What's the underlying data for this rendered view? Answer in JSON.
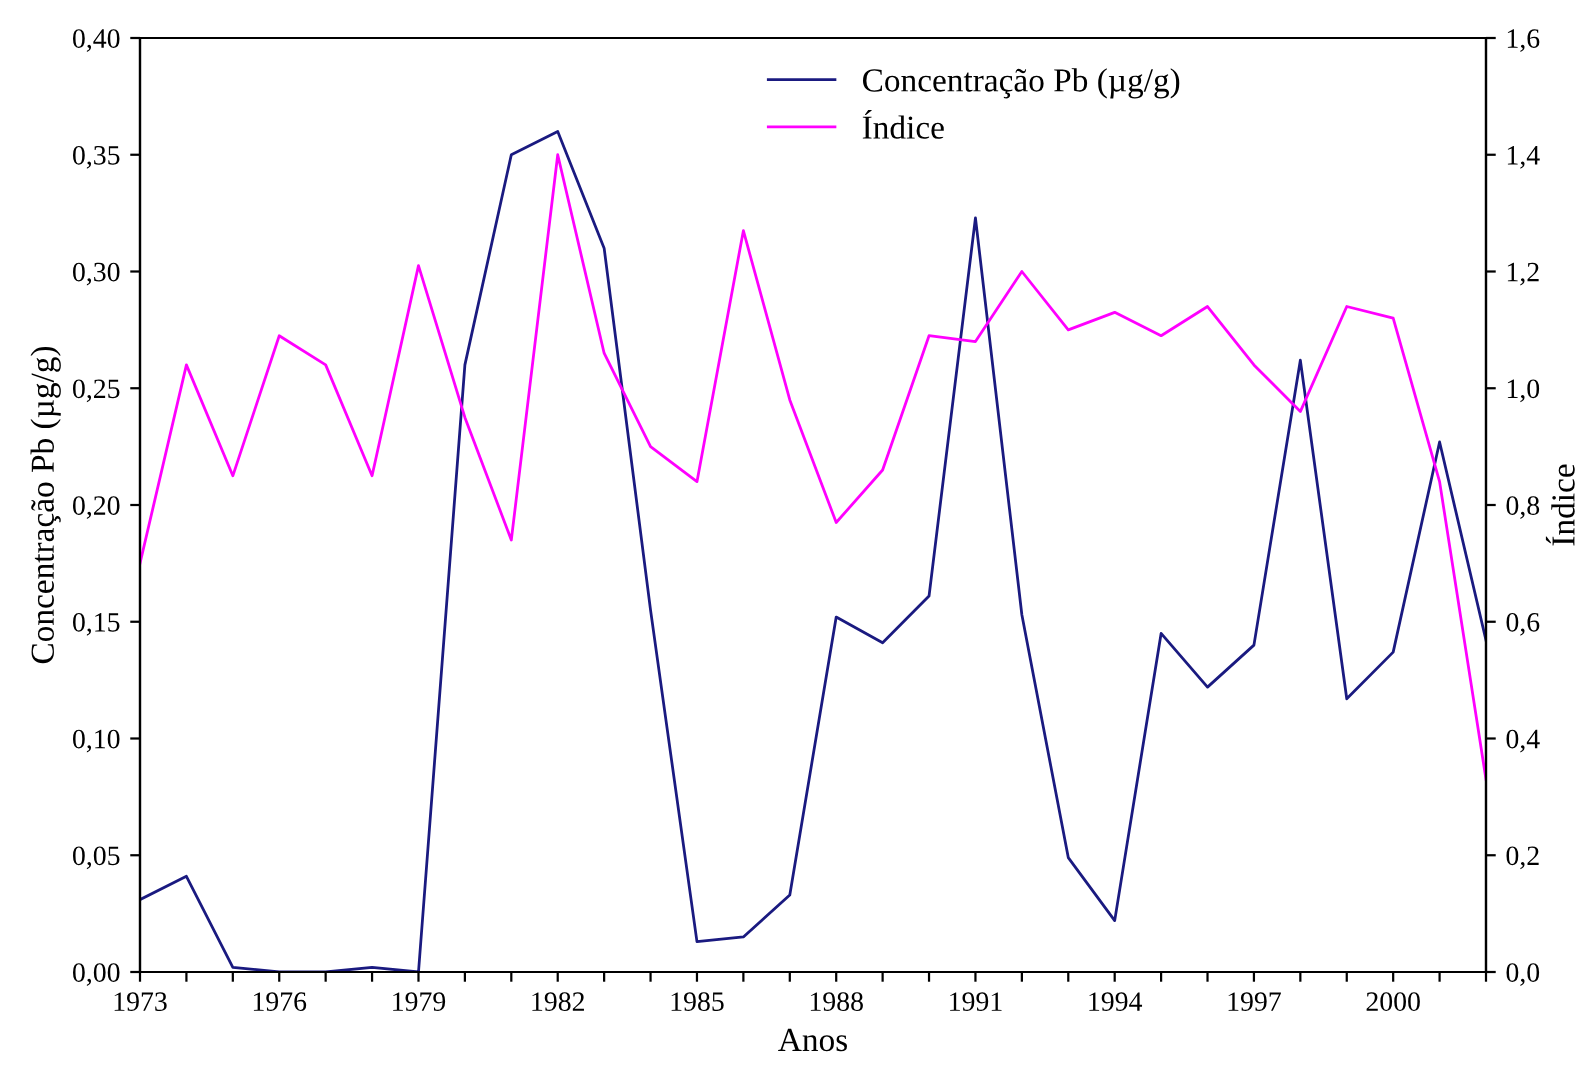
{
  "chart_data": {
    "type": "line",
    "xlabel": "Anos",
    "ylabel": "Concentração Pb (µg/g)",
    "y2label": "Índice",
    "x": [
      1973,
      1974,
      1975,
      1976,
      1977,
      1978,
      1979,
      1980,
      1981,
      1982,
      1983,
      1984,
      1985,
      1986,
      1987,
      1988,
      1989,
      1990,
      1991,
      1992,
      1993,
      1994,
      1995,
      1996,
      1997,
      1998,
      1999,
      2000,
      2001,
      2002
    ],
    "series": [
      {
        "name": "Concentração Pb (µg/g)",
        "color": "#1a1a80",
        "values": [
          0.031,
          0.041,
          0.002,
          0.0,
          0.0,
          0.002,
          0.0,
          0.26,
          0.35,
          0.36,
          0.31,
          0.155,
          0.013,
          0.015,
          0.033,
          0.152,
          0.141,
          0.161,
          0.323,
          0.153,
          0.049,
          0.022,
          0.145,
          0.122,
          0.14,
          0.262,
          0.117,
          0.137,
          0.227,
          0.142
        ]
      },
      {
        "name": "Índice",
        "color": "#ff00ff",
        "axis": "y2",
        "values": [
          0.7,
          1.04,
          0.85,
          1.09,
          1.04,
          0.85,
          1.21,
          0.95,
          0.74,
          1.4,
          1.06,
          0.9,
          0.84,
          1.27,
          0.98,
          0.77,
          0.86,
          1.09,
          1.08,
          1.2,
          1.1,
          1.13,
          1.09,
          1.14,
          1.04,
          0.96,
          1.14,
          1.12,
          0.84,
          0.33
        ]
      }
    ],
    "xlim": [
      1973,
      2002
    ],
    "xticks": [
      1973,
      {
        "value": 1974,
        "label": null
      },
      {
        "value": 1975,
        "label": null
      },
      1976,
      {
        "value": 1977,
        "label": null
      },
      {
        "value": 1978,
        "label": null
      },
      1979,
      {
        "value": 1980,
        "label": null
      },
      {
        "value": 1981,
        "label": null
      },
      1982,
      {
        "value": 1983,
        "label": null
      },
      {
        "value": 1984,
        "label": null
      },
      1985,
      {
        "value": 1986,
        "label": null
      },
      {
        "value": 1987,
        "label": null
      },
      1988,
      {
        "value": 1989,
        "label": null
      },
      {
        "value": 1990,
        "label": null
      },
      1991,
      {
        "value": 1992,
        "label": null
      },
      {
        "value": 1993,
        "label": null
      },
      1994,
      {
        "value": 1995,
        "label": null
      },
      {
        "value": 1996,
        "label": null
      },
      1997,
      {
        "value": 1998,
        "label": null
      },
      {
        "value": 1999,
        "label": null
      },
      2000,
      {
        "value": 2001,
        "label": null
      },
      {
        "value": 2002,
        "label": null
      }
    ],
    "ylim": [
      0,
      0.4
    ],
    "yticks": [
      {
        "value": 0,
        "label": "0,00"
      },
      {
        "value": 0.05,
        "label": "0,05"
      },
      {
        "value": 0.1,
        "label": "0,10"
      },
      {
        "value": 0.15,
        "label": "0,15"
      },
      {
        "value": 0.2,
        "label": "0,20"
      },
      {
        "value": 0.25,
        "label": "0,25"
      },
      {
        "value": 0.3,
        "label": "0,30"
      },
      {
        "value": 0.35,
        "label": "0,35"
      },
      {
        "value": 0.4,
        "label": "0,40"
      }
    ],
    "y2lim": [
      0,
      1.6
    ],
    "y2ticks": [
      {
        "value": 0,
        "label": "0,0"
      },
      {
        "value": 0.2,
        "label": "0,2"
      },
      {
        "value": 0.4,
        "label": "0,4"
      },
      {
        "value": 0.6,
        "label": "0,6"
      },
      {
        "value": 0.8,
        "label": "0,8"
      },
      {
        "value": 1.0,
        "label": "1,0"
      },
      {
        "value": 1.2,
        "label": "1,2"
      },
      {
        "value": 1.4,
        "label": "1,4"
      },
      {
        "value": 1.6,
        "label": "1,6"
      }
    ],
    "legend": "top",
    "grid": false,
    "marker": "none",
    "line_style": "solid"
  }
}
